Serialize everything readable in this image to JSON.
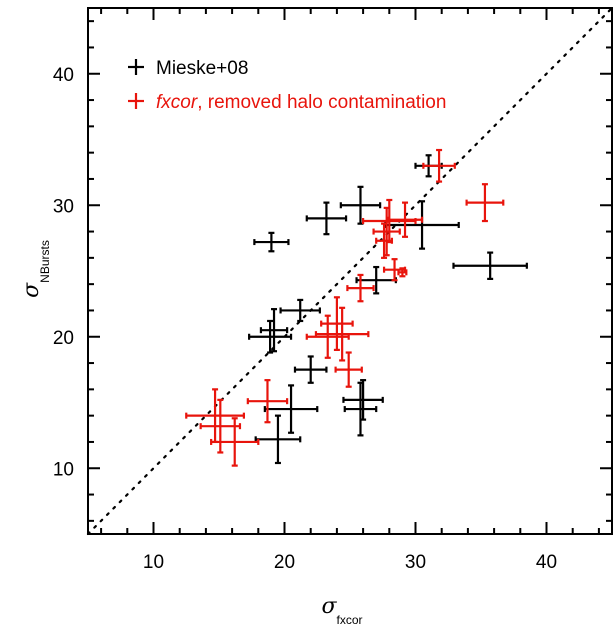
{
  "chart_data": {
    "type": "scatter",
    "title": "",
    "xlabel": {
      "symbol": "σ",
      "subscript": "fxcor"
    },
    "ylabel": {
      "symbol": "σ",
      "subscript": "NBursts"
    },
    "xlim": [
      5,
      45
    ],
    "ylim": [
      5,
      45
    ],
    "xticks": [
      10,
      20,
      30,
      40
    ],
    "yticks": [
      10,
      20,
      30,
      40
    ],
    "grid": false,
    "legend_position": "top-left",
    "reference_line": {
      "type": "one-to-one",
      "style": "dotted",
      "color": "#000000"
    },
    "legend": [
      {
        "series": 0,
        "label_plain": "Mieske+08"
      },
      {
        "series": 1,
        "label_italic": "fxcor",
        "label_plain": ", removed halo contamination"
      }
    ],
    "series": [
      {
        "name": "Mieske+08",
        "color": "#000000",
        "points": [
          {
            "x": 19.0,
            "y": 27.2,
            "xerr": 1.3,
            "yerr": 0.7
          },
          {
            "x": 23.2,
            "y": 29.0,
            "xerr": 1.5,
            "yerr": 1.2
          },
          {
            "x": 25.8,
            "y": 30.0,
            "xerr": 1.5,
            "yerr": 1.4
          },
          {
            "x": 30.5,
            "y": 28.5,
            "xerr": 2.8,
            "yerr": 1.8
          },
          {
            "x": 31.0,
            "y": 33.0,
            "xerr": 1.0,
            "yerr": 0.8
          },
          {
            "x": 35.7,
            "y": 25.4,
            "xerr": 2.8,
            "yerr": 1.0
          },
          {
            "x": 27.0,
            "y": 24.3,
            "xerr": 1.5,
            "yerr": 1.0
          },
          {
            "x": 21.2,
            "y": 22.0,
            "xerr": 1.5,
            "yerr": 0.8
          },
          {
            "x": 19.2,
            "y": 20.5,
            "xerr": 1.0,
            "yerr": 1.6
          },
          {
            "x": 18.9,
            "y": 20.0,
            "xerr": 1.6,
            "yerr": 1.2
          },
          {
            "x": 22.0,
            "y": 17.5,
            "xerr": 1.2,
            "yerr": 1.0
          },
          {
            "x": 20.5,
            "y": 14.5,
            "xerr": 2.0,
            "yerr": 1.8
          },
          {
            "x": 19.5,
            "y": 12.2,
            "xerr": 1.7,
            "yerr": 1.8
          },
          {
            "x": 25.8,
            "y": 14.5,
            "xerr": 1.2,
            "yerr": 2.0
          },
          {
            "x": 26.0,
            "y": 15.2,
            "xerr": 1.5,
            "yerr": 1.5
          }
        ]
      },
      {
        "name": "fxcor, removed halo contamination",
        "color": "#e8140c",
        "points": [
          {
            "x": 31.8,
            "y": 33.0,
            "xerr": 1.2,
            "yerr": 1.2
          },
          {
            "x": 35.3,
            "y": 30.2,
            "xerr": 1.4,
            "yerr": 1.4
          },
          {
            "x": 28.0,
            "y": 28.8,
            "xerr": 2.0,
            "yerr": 1.6
          },
          {
            "x": 29.2,
            "y": 28.9,
            "xerr": 1.3,
            "yerr": 1.3
          },
          {
            "x": 27.8,
            "y": 28.0,
            "xerr": 1.0,
            "yerr": 1.8
          },
          {
            "x": 27.6,
            "y": 27.3,
            "xerr": 0.6,
            "yerr": 1.3
          },
          {
            "x": 28.4,
            "y": 25.1,
            "xerr": 0.8,
            "yerr": 0.8
          },
          {
            "x": 29.0,
            "y": 24.9,
            "xerr": 0.3,
            "yerr": 0.3
          },
          {
            "x": 25.8,
            "y": 23.7,
            "xerr": 1.0,
            "yerr": 1.0
          },
          {
            "x": 24.0,
            "y": 21.0,
            "xerr": 1.2,
            "yerr": 2.0
          },
          {
            "x": 24.4,
            "y": 20.2,
            "xerr": 2.0,
            "yerr": 2.0
          },
          {
            "x": 23.3,
            "y": 20.0,
            "xerr": 1.6,
            "yerr": 1.6
          },
          {
            "x": 24.9,
            "y": 17.5,
            "xerr": 1.0,
            "yerr": 1.3
          },
          {
            "x": 18.7,
            "y": 15.1,
            "xerr": 1.5,
            "yerr": 1.6
          },
          {
            "x": 14.7,
            "y": 14.0,
            "xerr": 2.2,
            "yerr": 2.0
          },
          {
            "x": 15.1,
            "y": 13.2,
            "xerr": 1.5,
            "yerr": 2.0
          },
          {
            "x": 16.2,
            "y": 12.0,
            "xerr": 1.8,
            "yerr": 1.8
          }
        ]
      }
    ]
  }
}
